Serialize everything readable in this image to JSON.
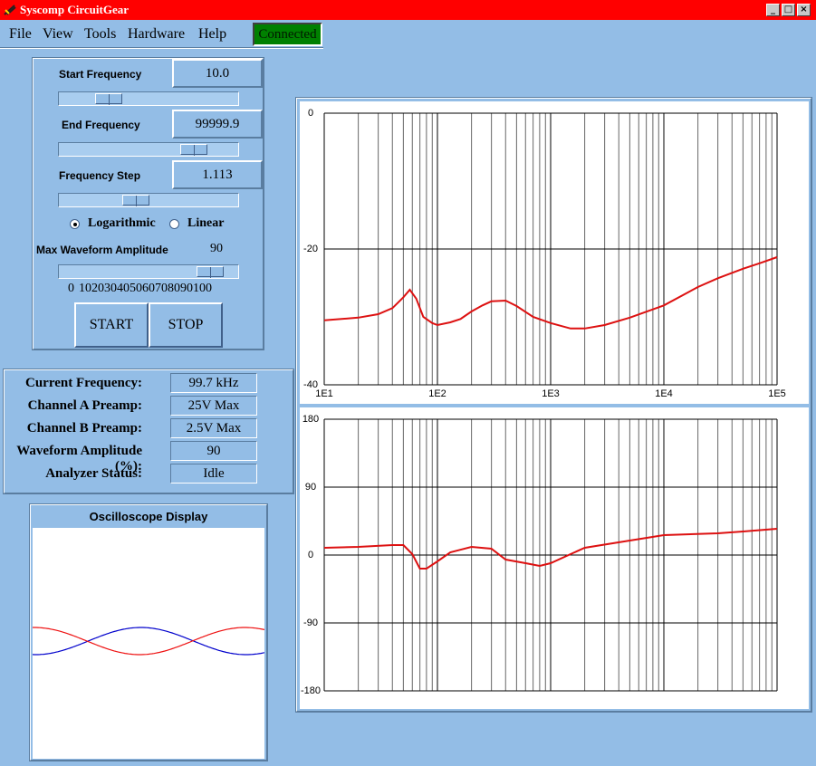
{
  "window": {
    "title": "Syscomp CircuitGear"
  },
  "menu": {
    "items": [
      "File",
      "View",
      "Tools",
      "Hardware",
      "Help"
    ],
    "status": "Connected"
  },
  "sweep": {
    "fields": [
      {
        "label": "Start Frequency",
        "value": "10.0"
      },
      {
        "label": "End Frequency",
        "value": "99999.9"
      },
      {
        "label": "Frequency Step",
        "value": "1.113"
      }
    ],
    "scale": {
      "options": [
        "Logarithmic",
        "Linear"
      ],
      "selected": 0
    },
    "amplitude": {
      "label": "Max Waveform Amplitude",
      "value": "90",
      "scale_labels": [
        "0",
        "10",
        "20",
        "30",
        "40",
        "50",
        "60",
        "70",
        "80",
        "90",
        "100"
      ]
    },
    "buttons": [
      "START",
      "STOP"
    ]
  },
  "status": {
    "rows": [
      [
        "Current Frequency:",
        "99.7 kHz"
      ],
      [
        "Channel A Preamp:",
        "25V Max"
      ],
      [
        "Channel B Preamp:",
        "2.5V Max"
      ],
      [
        "Waveform Amplitude (%):",
        "90"
      ],
      [
        "Analyzer Status:",
        "Idle"
      ]
    ]
  },
  "oscilloscope": {
    "title": "Oscilloscope Display"
  },
  "chart_data": [
    {
      "type": "line",
      "log_x": true,
      "grid": true,
      "color": "#dd1111",
      "xlim": [
        10,
        100000
      ],
      "xticks": [
        {
          "value": 10,
          "label": "1E1"
        },
        {
          "value": 100,
          "label": "1E2"
        },
        {
          "value": 1000,
          "label": "1E3"
        },
        {
          "value": 10000,
          "label": "1E4"
        },
        {
          "value": 100000,
          "label": "1E5"
        }
      ],
      "xminor_ticks": [
        20,
        30,
        40,
        50,
        60,
        70,
        80,
        90,
        200,
        300,
        400,
        500,
        600,
        700,
        800,
        900,
        2000,
        3000,
        4000,
        5000,
        6000,
        7000,
        8000,
        9000,
        20000,
        30000,
        40000,
        50000,
        60000,
        70000,
        80000,
        90000
      ],
      "ylim": [
        -40,
        0
      ],
      "yticks": [
        -40,
        -20,
        0
      ],
      "x": [
        10,
        20,
        30,
        40,
        50,
        57,
        65,
        75,
        90,
        100,
        130,
        160,
        200,
        250,
        300,
        400,
        500,
        700,
        1000,
        1500,
        2000,
        3000,
        5000,
        10000,
        20000,
        30000,
        50000,
        70000,
        100000
      ],
      "values": [
        -30.5,
        -30.1,
        -29.6,
        -28.7,
        -27.1,
        -26,
        -27.3,
        -30,
        -30.9,
        -31.2,
        -30.8,
        -30.3,
        -29.2,
        -28.3,
        -27.7,
        -27.6,
        -28.4,
        -30,
        -30.9,
        -31.7,
        -31.7,
        -31.2,
        -30.1,
        -28.3,
        -25.6,
        -24.3,
        -22.9,
        -22.1,
        -21.2
      ]
    },
    {
      "type": "line",
      "log_x": true,
      "grid": true,
      "color": "#dd1111",
      "xlim": [
        10,
        100000
      ],
      "xticks": [
        10,
        100,
        1000,
        10000,
        100000
      ],
      "xminor_ticks": [
        20,
        30,
        40,
        50,
        60,
        70,
        80,
        90,
        200,
        300,
        400,
        500,
        600,
        700,
        800,
        900,
        2000,
        3000,
        4000,
        5000,
        6000,
        7000,
        8000,
        9000,
        20000,
        30000,
        40000,
        50000,
        60000,
        70000,
        80000,
        90000
      ],
      "ylim": [
        -180,
        180
      ],
      "yticks": [
        -180,
        -90,
        0,
        90,
        180
      ],
      "x": [
        10,
        20,
        40,
        50,
        60,
        70,
        80,
        100,
        130,
        200,
        300,
        400,
        600,
        800,
        1000,
        1500,
        2000,
        5000,
        10000,
        30000,
        50000,
        100000
      ],
      "values": [
        9.6,
        10.8,
        13.2,
        13.2,
        1.2,
        -18,
        -18,
        -8.4,
        3.6,
        10.8,
        8.4,
        -6,
        -10.8,
        -14.4,
        -10.8,
        1.2,
        9.6,
        19.2,
        26.4,
        28.8,
        31.2,
        34.8
      ]
    }
  ]
}
